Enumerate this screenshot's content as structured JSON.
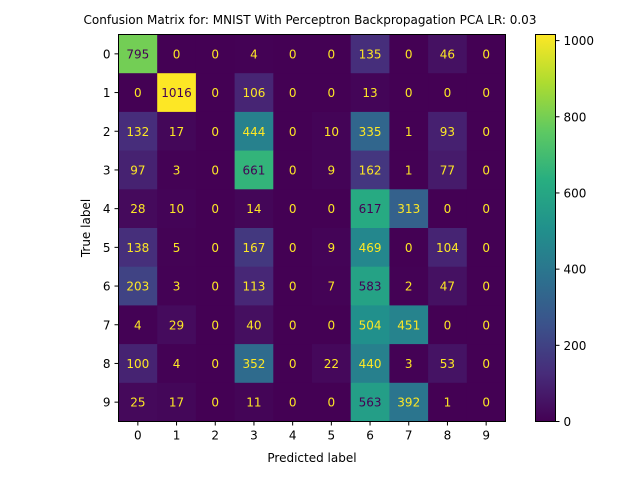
{
  "chart_data": {
    "type": "heatmap",
    "title": "Confusion Matrix for: MNIST With Perceptron Backpropagation PCA LR: 0.03",
    "xlabel": "Predicted label",
    "ylabel": "True label",
    "x_categories": [
      "0",
      "1",
      "2",
      "3",
      "4",
      "5",
      "6",
      "7",
      "8",
      "9"
    ],
    "y_categories": [
      "0",
      "1",
      "2",
      "3",
      "4",
      "5",
      "6",
      "7",
      "8",
      "9"
    ],
    "values": [
      [
        795,
        0,
        0,
        4,
        0,
        0,
        135,
        0,
        46,
        0
      ],
      [
        0,
        1016,
        0,
        106,
        0,
        0,
        13,
        0,
        0,
        0
      ],
      [
        132,
        17,
        0,
        444,
        0,
        10,
        335,
        1,
        93,
        0
      ],
      [
        97,
        3,
        0,
        661,
        0,
        9,
        162,
        1,
        77,
        0
      ],
      [
        28,
        10,
        0,
        14,
        0,
        0,
        617,
        313,
        0,
        0
      ],
      [
        138,
        5,
        0,
        167,
        0,
        9,
        469,
        0,
        104,
        0
      ],
      [
        203,
        3,
        0,
        113,
        0,
        7,
        583,
        2,
        47,
        0
      ],
      [
        4,
        29,
        0,
        40,
        0,
        0,
        504,
        451,
        0,
        0
      ],
      [
        100,
        4,
        0,
        352,
        0,
        22,
        440,
        3,
        53,
        0
      ],
      [
        25,
        17,
        0,
        11,
        0,
        0,
        563,
        392,
        1,
        0
      ]
    ],
    "vmin": 0,
    "vmax": 1016,
    "colormap": "viridis",
    "colorbar_ticks": [
      0,
      200,
      400,
      600,
      800,
      1000
    ],
    "text_color_light": "#fde725",
    "text_color_dark": "#440154"
  }
}
